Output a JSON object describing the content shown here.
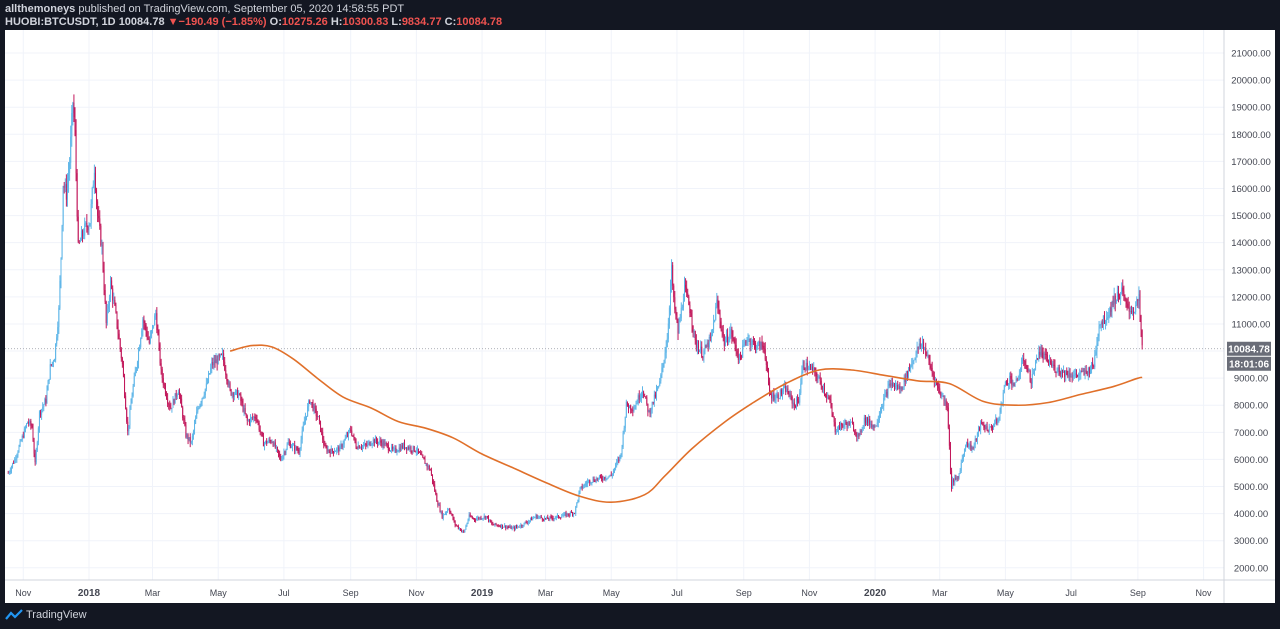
{
  "header": {
    "author": "allthemoneys",
    "published": "published on TradingView.com, September 05, 2020 14:58:55 PDT",
    "symbol": "HUOBI:BTCUSDT, 1D",
    "last": "10084.78",
    "change": "−190.49 (−1.85%)",
    "o_label": "O:",
    "o_value": "10275.26",
    "h_label": "H:",
    "h_value": "10300.83",
    "l_label": "L:",
    "l_value": "9834.77",
    "c_label": "C:",
    "c_value": "10084.78"
  },
  "footer": {
    "brand": "TradingView",
    "logo_icon": "tradingview-logo-icon"
  },
  "colors": {
    "up": "#5fb6e8",
    "down": "#c2185b",
    "ma": "#e0702a",
    "bg": "#ffffff",
    "grid": "#f0f3fa"
  },
  "chart_data": {
    "type": "line",
    "title": "",
    "xlabel": "",
    "ylabel": "",
    "ylim": [
      1550,
      21850
    ],
    "y_ticks": [
      2000,
      3000,
      4000,
      5000,
      6000,
      7000,
      8000,
      9000,
      10000,
      11000,
      12000,
      13000,
      14000,
      15000,
      16000,
      17000,
      18000,
      19000,
      20000,
      21000
    ],
    "y_tick_labels": [
      "2000.00",
      "3000.00",
      "4000.00",
      "5000.00",
      "6000.00",
      "7000.00",
      "8000.00",
      "9000.00",
      "10000.00",
      "11000.00",
      "12000.00",
      "13000.00",
      "14000.00",
      "15000.00",
      "16000.00",
      "17000.00",
      "18000.00",
      "19000.00",
      "20000.00",
      "21000.00"
    ],
    "x_range": [
      "2017-10-15",
      "2020-11-20"
    ],
    "x_ticks": [
      {
        "label": "Nov",
        "date": "2017-11-01",
        "bold": false
      },
      {
        "label": "2018",
        "date": "2018-01-01",
        "bold": true
      },
      {
        "label": "Mar",
        "date": "2018-03-01",
        "bold": false
      },
      {
        "label": "May",
        "date": "2018-05-01",
        "bold": false
      },
      {
        "label": "Jul",
        "date": "2018-07-01",
        "bold": false
      },
      {
        "label": "Sep",
        "date": "2018-09-01",
        "bold": false
      },
      {
        "label": "Nov",
        "date": "2018-11-01",
        "bold": false
      },
      {
        "label": "2019",
        "date": "2019-01-01",
        "bold": true
      },
      {
        "label": "Mar",
        "date": "2019-03-01",
        "bold": false
      },
      {
        "label": "May",
        "date": "2019-05-01",
        "bold": false
      },
      {
        "label": "Jul",
        "date": "2019-07-01",
        "bold": false
      },
      {
        "label": "Sep",
        "date": "2019-09-01",
        "bold": false
      },
      {
        "label": "Nov",
        "date": "2019-11-01",
        "bold": false
      },
      {
        "label": "2020",
        "date": "2020-01-01",
        "bold": true
      },
      {
        "label": "Mar",
        "date": "2020-03-01",
        "bold": false
      },
      {
        "label": "May",
        "date": "2020-05-01",
        "bold": false
      },
      {
        "label": "Jul",
        "date": "2020-07-01",
        "bold": false
      },
      {
        "label": "Sep",
        "date": "2020-09-01",
        "bold": false
      },
      {
        "label": "Nov",
        "date": "2020-11-01",
        "bold": false
      }
    ],
    "last_price": 10084.78,
    "last_price_label": "10084.78",
    "countdown_label": "18:01:06",
    "series": [
      {
        "kind": "price",
        "points": [
          [
            "2017-10-18",
            5500
          ],
          [
            "2017-10-24",
            6000
          ],
          [
            "2017-10-31",
            6800
          ],
          [
            "2017-11-05",
            7400
          ],
          [
            "2017-11-09",
            7200
          ],
          [
            "2017-11-12",
            5800
          ],
          [
            "2017-11-16",
            7700
          ],
          [
            "2017-11-22",
            8200
          ],
          [
            "2017-11-26",
            9400
          ],
          [
            "2017-11-30",
            9800
          ],
          [
            "2017-12-04",
            11500
          ],
          [
            "2017-12-06",
            13500
          ],
          [
            "2017-12-08",
            16200
          ],
          [
            "2017-12-11",
            15800
          ],
          [
            "2017-12-14",
            17000
          ],
          [
            "2017-12-17",
            19200
          ],
          [
            "2017-12-19",
            18000
          ],
          [
            "2017-12-22",
            13800
          ],
          [
            "2017-12-25",
            14200
          ],
          [
            "2017-12-28",
            14500
          ],
          [
            "2018-01-02",
            14800
          ],
          [
            "2018-01-06",
            16800
          ],
          [
            "2018-01-09",
            15000
          ],
          [
            "2018-01-13",
            13800
          ],
          [
            "2018-01-17",
            11000
          ],
          [
            "2018-01-21",
            12500
          ],
          [
            "2018-01-26",
            11300
          ],
          [
            "2018-02-01",
            9500
          ],
          [
            "2018-02-06",
            7000
          ],
          [
            "2018-02-10",
            8400
          ],
          [
            "2018-02-16",
            10000
          ],
          [
            "2018-02-20",
            11200
          ],
          [
            "2018-02-26",
            10300
          ],
          [
            "2018-03-04",
            11400
          ],
          [
            "2018-03-09",
            9200
          ],
          [
            "2018-03-15",
            8200
          ],
          [
            "2018-03-18",
            7900
          ],
          [
            "2018-03-25",
            8600
          ],
          [
            "2018-04-01",
            6900
          ],
          [
            "2018-04-06",
            6600
          ],
          [
            "2018-04-12",
            7900
          ],
          [
            "2018-04-20",
            8700
          ],
          [
            "2018-04-25",
            9500
          ],
          [
            "2018-05-05",
            9800
          ],
          [
            "2018-05-12",
            8500
          ],
          [
            "2018-05-20",
            8400
          ],
          [
            "2018-05-28",
            7400
          ],
          [
            "2018-06-05",
            7600
          ],
          [
            "2018-06-12",
            6600
          ],
          [
            "2018-06-20",
            6700
          ],
          [
            "2018-06-28",
            6000
          ],
          [
            "2018-07-05",
            6600
          ],
          [
            "2018-07-15",
            6300
          ],
          [
            "2018-07-20",
            7400
          ],
          [
            "2018-07-25",
            8200
          ],
          [
            "2018-08-02",
            7500
          ],
          [
            "2018-08-08",
            6400
          ],
          [
            "2018-08-14",
            6300
          ],
          [
            "2018-08-22",
            6400
          ],
          [
            "2018-09-01",
            7100
          ],
          [
            "2018-09-06",
            6500
          ],
          [
            "2018-09-15",
            6500
          ],
          [
            "2018-09-22",
            6700
          ],
          [
            "2018-10-01",
            6600
          ],
          [
            "2018-10-11",
            6300
          ],
          [
            "2018-10-20",
            6500
          ],
          [
            "2018-11-01",
            6350
          ],
          [
            "2018-11-14",
            5600
          ],
          [
            "2018-11-20",
            4500
          ],
          [
            "2018-11-25",
            3900
          ],
          [
            "2018-12-01",
            4200
          ],
          [
            "2018-12-07",
            3600
          ],
          [
            "2018-12-15",
            3300
          ],
          [
            "2018-12-20",
            3900
          ],
          [
            "2018-12-25",
            3800
          ],
          [
            "2019-01-05",
            3900
          ],
          [
            "2019-01-10",
            3600
          ],
          [
            "2019-01-20",
            3550
          ],
          [
            "2019-01-30",
            3450
          ],
          [
            "2019-02-08",
            3600
          ],
          [
            "2019-02-20",
            3900
          ],
          [
            "2019-03-01",
            3800
          ],
          [
            "2019-03-15",
            3900
          ],
          [
            "2019-03-28",
            4050
          ],
          [
            "2019-04-02",
            4900
          ],
          [
            "2019-04-10",
            5200
          ],
          [
            "2019-04-20",
            5300
          ],
          [
            "2019-05-01",
            5400
          ],
          [
            "2019-05-10",
            6200
          ],
          [
            "2019-05-15",
            8000
          ],
          [
            "2019-05-22",
            7900
          ],
          [
            "2019-05-30",
            8600
          ],
          [
            "2019-06-05",
            7700
          ],
          [
            "2019-06-15",
            8800
          ],
          [
            "2019-06-22",
            10500
          ],
          [
            "2019-06-26",
            13000
          ],
          [
            "2019-06-28",
            11800
          ],
          [
            "2019-07-02",
            10700
          ],
          [
            "2019-07-08",
            12300
          ],
          [
            "2019-07-14",
            11400
          ],
          [
            "2019-07-18",
            10300
          ],
          [
            "2019-07-25",
            9900
          ],
          [
            "2019-08-02",
            10500
          ],
          [
            "2019-08-07",
            11800
          ],
          [
            "2019-08-14",
            10300
          ],
          [
            "2019-08-20",
            10700
          ],
          [
            "2019-08-28",
            9700
          ],
          [
            "2019-09-04",
            10500
          ],
          [
            "2019-09-12",
            10200
          ],
          [
            "2019-09-20",
            10200
          ],
          [
            "2019-09-25",
            8400
          ],
          [
            "2019-10-01",
            8300
          ],
          [
            "2019-10-10",
            8600
          ],
          [
            "2019-10-18",
            8000
          ],
          [
            "2019-10-22",
            8200
          ],
          [
            "2019-10-26",
            9500
          ],
          [
            "2019-11-04",
            9300
          ],
          [
            "2019-11-12",
            8800
          ],
          [
            "2019-11-20",
            8100
          ],
          [
            "2019-11-25",
            7100
          ],
          [
            "2019-12-03",
            7300
          ],
          [
            "2019-12-10",
            7300
          ],
          [
            "2019-12-17",
            6800
          ],
          [
            "2019-12-22",
            7500
          ],
          [
            "2020-01-01",
            7200
          ],
          [
            "2020-01-08",
            8100
          ],
          [
            "2020-01-15",
            8800
          ],
          [
            "2020-01-25",
            8600
          ],
          [
            "2020-02-02",
            9400
          ],
          [
            "2020-02-10",
            10100
          ],
          [
            "2020-02-14",
            10300
          ],
          [
            "2020-02-20",
            9600
          ],
          [
            "2020-02-25",
            9000
          ],
          [
            "2020-03-01",
            8500
          ],
          [
            "2020-03-08",
            8000
          ],
          [
            "2020-03-12",
            4900
          ],
          [
            "2020-03-13",
            5200
          ],
          [
            "2020-03-18",
            5300
          ],
          [
            "2020-03-25",
            6600
          ],
          [
            "2020-04-01",
            6400
          ],
          [
            "2020-04-08",
            7300
          ],
          [
            "2020-04-16",
            7100
          ],
          [
            "2020-04-25",
            7500
          ],
          [
            "2020-04-30",
            8700
          ],
          [
            "2020-05-05",
            9000
          ],
          [
            "2020-05-10",
            8700
          ],
          [
            "2020-05-18",
            9700
          ],
          [
            "2020-05-25",
            8900
          ],
          [
            "2020-06-01",
            10000
          ],
          [
            "2020-06-08",
            9700
          ],
          [
            "2020-06-15",
            9400
          ],
          [
            "2020-06-25",
            9200
          ],
          [
            "2020-07-05",
            9100
          ],
          [
            "2020-07-15",
            9200
          ],
          [
            "2020-07-22",
            9500
          ],
          [
            "2020-07-27",
            11000
          ],
          [
            "2020-08-02",
            11200
          ],
          [
            "2020-08-10",
            11900
          ],
          [
            "2020-08-17",
            12200
          ],
          [
            "2020-08-22",
            11600
          ],
          [
            "2020-08-28",
            11500
          ],
          [
            "2020-09-02",
            11900
          ],
          [
            "2020-09-05",
            10084.78
          ]
        ]
      },
      {
        "kind": "moving_average",
        "points": [
          [
            "2018-05-12",
            10000
          ],
          [
            "2018-06-01",
            10200
          ],
          [
            "2018-06-20",
            10150
          ],
          [
            "2018-07-10",
            9700
          ],
          [
            "2018-08-01",
            9000
          ],
          [
            "2018-08-25",
            8300
          ],
          [
            "2018-09-20",
            7900
          ],
          [
            "2018-10-15",
            7400
          ],
          [
            "2018-11-10",
            7150
          ],
          [
            "2018-12-05",
            6800
          ],
          [
            "2019-01-01",
            6200
          ],
          [
            "2019-02-01",
            5650
          ],
          [
            "2019-03-01",
            5150
          ],
          [
            "2019-04-01",
            4650
          ],
          [
            "2019-05-01",
            4420
          ],
          [
            "2019-06-01",
            4700
          ],
          [
            "2019-06-20",
            5400
          ],
          [
            "2019-07-15",
            6400
          ],
          [
            "2019-08-15",
            7400
          ],
          [
            "2019-09-10",
            8100
          ],
          [
            "2019-10-10",
            8800
          ],
          [
            "2019-11-10",
            9300
          ],
          [
            "2019-12-10",
            9300
          ],
          [
            "2020-01-10",
            9100
          ],
          [
            "2020-02-10",
            8900
          ],
          [
            "2020-03-10",
            8800
          ],
          [
            "2020-04-10",
            8150
          ],
          [
            "2020-05-10",
            8000
          ],
          [
            "2020-06-10",
            8100
          ],
          [
            "2020-07-10",
            8400
          ],
          [
            "2020-08-10",
            8700
          ],
          [
            "2020-09-01",
            9000
          ],
          [
            "2020-09-05",
            9020
          ]
        ]
      }
    ]
  }
}
